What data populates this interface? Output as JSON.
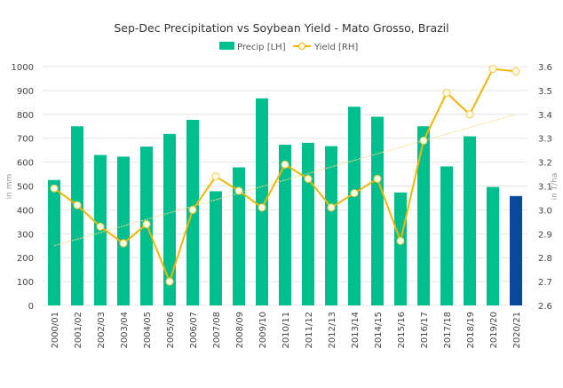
{
  "chart_data": {
    "type": "bar+line",
    "title": "Sep-Dec Precipitation vs Soybean Yield - Mato Grosso, Brazil",
    "ylabel_left": "in mm",
    "ylabel_right": "in T/ha",
    "ylim_left": [
      0,
      1000
    ],
    "ylim_right": [
      2.6,
      3.6
    ],
    "yticks_left": [
      "0",
      "100",
      "200",
      "300",
      "400",
      "500",
      "600",
      "700",
      "800",
      "900",
      "1000"
    ],
    "yticks_right": [
      "2.6",
      "2.7",
      "2.8",
      "2.9",
      "3.0",
      "3.1",
      "3.2",
      "3.3",
      "3.4",
      "3.5",
      "3.6"
    ],
    "grid": true,
    "legend_placement": "top",
    "categories": [
      "2000/01",
      "2001/02",
      "2002/03",
      "2003/04",
      "2004/05",
      "2005/06",
      "2006/07",
      "2007/08",
      "2008/09",
      "2009/10",
      "2010/11",
      "2011/12",
      "2012/13",
      "2013/14",
      "2014/15",
      "2015/16",
      "2016/17",
      "2017/18",
      "2018/19",
      "2019/20",
      "2020/21"
    ],
    "series": [
      {
        "name": "Precip [LH]",
        "type": "bar",
        "axis": "left",
        "color": "#00bf8f",
        "highlight_color": "#0a4a9c",
        "values": [
          525,
          750,
          630,
          623,
          665,
          718,
          777,
          478,
          578,
          867,
          673,
          681,
          667,
          832,
          790,
          473,
          750,
          582,
          708,
          496,
          458
        ]
      },
      {
        "name": "Yield [RH]",
        "type": "line",
        "axis": "right",
        "color": "#f2b600",
        "values": [
          3.09,
          3.02,
          2.93,
          2.86,
          2.94,
          2.7,
          3.0,
          3.14,
          3.08,
          3.01,
          3.19,
          3.13,
          3.01,
          3.07,
          3.13,
          2.87,
          3.29,
          3.49,
          3.4,
          3.59,
          3.58
        ]
      }
    ],
    "trendline": {
      "axis": "right",
      "color": "#f5dc8a",
      "start": 2.85,
      "end": 3.4
    }
  }
}
